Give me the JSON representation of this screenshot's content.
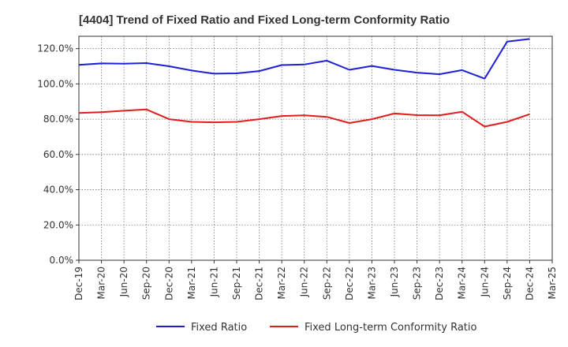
{
  "chart_data": {
    "type": "line",
    "title": "[4404]  Trend of Fixed Ratio and Fixed Long-term Conformity Ratio",
    "xlabel": "",
    "ylabel": "",
    "x_ticks": [
      "Dec-19",
      "Mar-20",
      "Jun-20",
      "Sep-20",
      "Dec-20",
      "Mar-21",
      "Jun-21",
      "Sep-21",
      "Dec-21",
      "Mar-22",
      "Jun-22",
      "Sep-22",
      "Dec-22",
      "Mar-23",
      "Jun-23",
      "Sep-23",
      "Dec-23",
      "Mar-24",
      "Jun-24",
      "Sep-24",
      "Dec-24",
      "Mar-25"
    ],
    "y_ticks": [
      "0.0%",
      "20.0%",
      "40.0%",
      "60.0%",
      "80.0%",
      "100.0%",
      "120.0%"
    ],
    "ylim": [
      0,
      127
    ],
    "grid": true,
    "legend_position": "bottom",
    "series": [
      {
        "name": "Fixed Ratio",
        "color": "#1f1fd6",
        "x": [
          "Dec-19",
          "Mar-20",
          "Jun-20",
          "Sep-20",
          "Dec-20",
          "Mar-21",
          "Jun-21",
          "Sep-21",
          "Dec-21",
          "Mar-22",
          "Jun-22",
          "Sep-22",
          "Dec-22",
          "Mar-23",
          "Jun-23",
          "Sep-23",
          "Dec-23",
          "Mar-24",
          "Jun-24",
          "Sep-24",
          "Dec-24"
        ],
        "values": [
          110.8,
          111.6,
          111.5,
          111.8,
          110.0,
          107.6,
          105.8,
          106.0,
          107.3,
          110.7,
          111.0,
          113.2,
          108.0,
          110.2,
          108.0,
          106.4,
          105.5,
          107.8,
          103.0,
          124.0,
          125.5
        ]
      },
      {
        "name": "Fixed Long-term Conformity Ratio",
        "color": "#e01e1e",
        "x": [
          "Dec-19",
          "Mar-20",
          "Jun-20",
          "Sep-20",
          "Dec-20",
          "Mar-21",
          "Jun-21",
          "Sep-21",
          "Dec-21",
          "Mar-22",
          "Jun-22",
          "Sep-22",
          "Dec-22",
          "Mar-23",
          "Jun-23",
          "Sep-23",
          "Dec-23",
          "Mar-24",
          "Jun-24",
          "Sep-24",
          "Dec-24"
        ],
        "values": [
          83.5,
          84.0,
          84.8,
          85.5,
          80.0,
          78.5,
          78.2,
          78.5,
          80.0,
          81.8,
          82.2,
          81.3,
          77.8,
          80.0,
          83.2,
          82.3,
          82.2,
          84.2,
          75.8,
          78.5,
          82.8
        ]
      }
    ]
  }
}
